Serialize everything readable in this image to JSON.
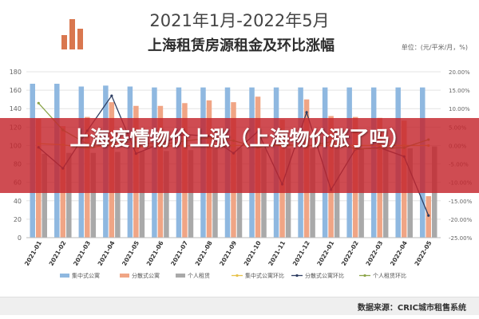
{
  "header": {
    "title_main": "2021年1月-2022年5月",
    "title_sub": "上海租赁房源租金及环比涨幅",
    "unit": "单位：(元/平米/月，%)"
  },
  "banner": {
    "text": "上海疫情物价上涨（上海物价涨了吗）"
  },
  "footer": {
    "source": "数据来源：CRIC城市租售系统"
  },
  "colors": {
    "bar_concentrated": "#8fb8e0",
    "bar_dispersed": "#f0a585",
    "bar_individual": "#a9a9a9",
    "line_concentrated_mom": "#e7c24a",
    "line_dispersed_mom": "#2e3e62",
    "line_individual_mom": "#8ca54a",
    "banner_red": "#c4242c"
  },
  "chart_data": {
    "type": "bar",
    "categories": [
      "2021-01",
      "2021-02",
      "2021-03",
      "2021-04",
      "2021-05",
      "2021-06",
      "2021-07",
      "2021-08",
      "2021-09",
      "2021-10",
      "2021-11",
      "2021-12",
      "2022-01",
      "2022-02",
      "2022-03",
      "2022-04",
      "2022-05"
    ],
    "ylim": [
      0,
      180
    ],
    "y2lim": [
      -25,
      20
    ],
    "yticks": [
      "0",
      "20",
      "40",
      "60",
      "80",
      "100",
      "120",
      "140",
      "160",
      "180"
    ],
    "y2ticks": [
      "-25.00%",
      "-20.00%",
      "-15.00%",
      "-10.00%",
      "-5.00%",
      "0.00%",
      "5.00%",
      "10.00%",
      "15.00%",
      "20.00%"
    ],
    "legend": [
      "集中式公寓",
      "分散式公寓",
      "个人租赁",
      "集中式公寓环比",
      "分散式公寓环比",
      "个人租赁环比"
    ],
    "series": [
      {
        "name": "集中式公寓",
        "axis": "left",
        "type": "bar",
        "values": [
          167,
          167,
          164,
          165,
          164,
          163,
          163,
          163,
          163,
          163,
          163,
          163,
          163,
          163,
          163,
          163,
          163
        ]
      },
      {
        "name": "分散式公寓",
        "axis": "left",
        "type": "bar",
        "values": [
          129,
          121,
          131,
          147,
          143,
          143,
          146,
          149,
          147,
          153,
          128,
          150,
          132,
          131,
          130,
          127,
          45
        ]
      },
      {
        "name": "个人租赁",
        "axis": "left",
        "type": "bar",
        "values": [
          91,
          92,
          92,
          93,
          94,
          94,
          95,
          97,
          98,
          97,
          97,
          97,
          98,
          97,
          98,
          97,
          99
        ]
      },
      {
        "name": "集中式公寓环比",
        "axis": "right",
        "type": "line",
        "values": [
          0.5,
          0.2,
          -0.8,
          0.4,
          -0.3,
          -0.2,
          -0.1,
          0.0,
          0.0,
          0.0,
          0.0,
          0.0,
          0.0,
          0.0,
          0.0,
          0.0,
          0.0
        ]
      },
      {
        "name": "分散式公寓环比",
        "axis": "right",
        "type": "line",
        "values": [
          -0.5,
          -6.2,
          4.0,
          13.5,
          -2.2,
          0.5,
          3.0,
          2.5,
          -2.1,
          3.8,
          -10.5,
          9.0,
          -12.0,
          -1.0,
          -0.6,
          -3.0,
          -19.0
        ]
      },
      {
        "name": "个人租赁环比",
        "axis": "right",
        "type": "line",
        "values": [
          11.5,
          4.2,
          0.4,
          0.8,
          1.0,
          0.2,
          1.2,
          2.0,
          1.3,
          -0.5,
          0.4,
          -0.2,
          1.0,
          -0.9,
          -0.8,
          -0.6,
          1.6
        ]
      }
    ]
  }
}
